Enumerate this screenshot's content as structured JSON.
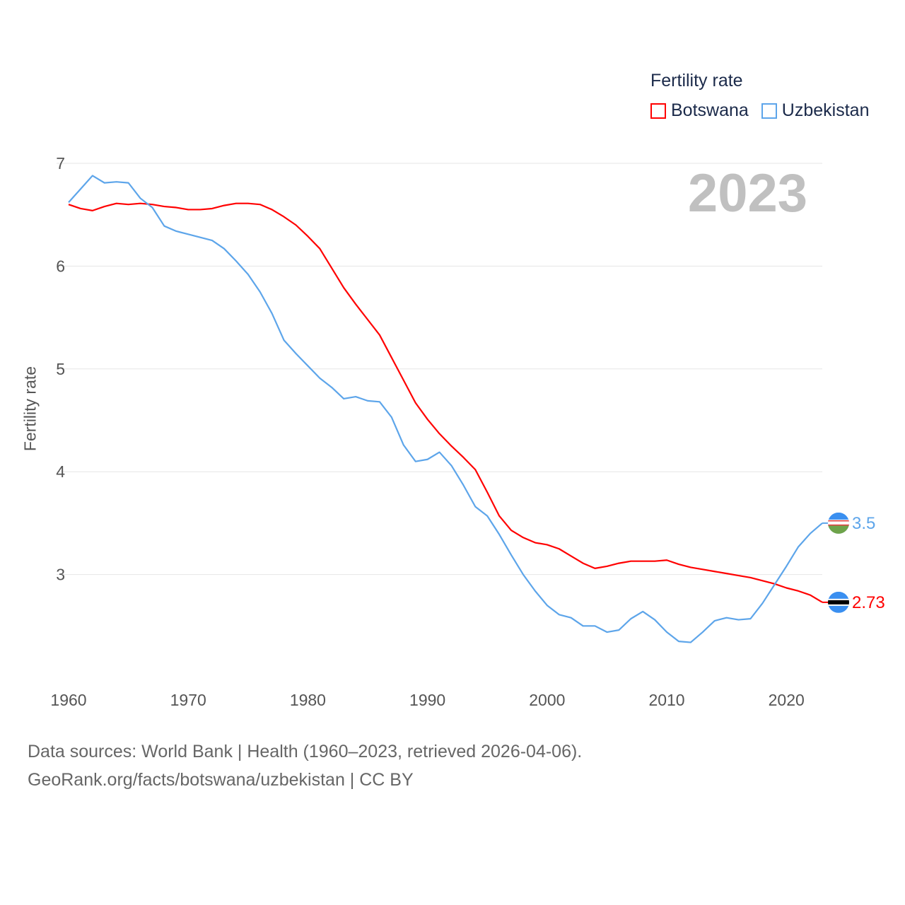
{
  "legend": {
    "title": "Fertility rate"
  },
  "year_label": "2023",
  "footer": {
    "line1": "Data sources: World Bank | Health (1960–2023, retrieved 2026-04-06).",
    "line2": "GeoRank.org/facts/botswana/uzbekistan | CC BY"
  },
  "chart_data": {
    "type": "line",
    "title": "Fertility rate",
    "xlabel": "",
    "ylabel": "Fertility rate",
    "xlim": [
      1960,
      2023
    ],
    "ylim": [
      2.0,
      7.0
    ],
    "xticks": [
      1960,
      1970,
      1980,
      1990,
      2000,
      2010,
      2020
    ],
    "yticks": [
      3,
      4,
      5,
      6,
      7
    ],
    "grid": true,
    "legend_position": "top-right",
    "x_start": 1960,
    "series": [
      {
        "name": "Botswana",
        "color": "#ff0000",
        "end_label": "2.73",
        "values": [
          6.6,
          6.56,
          6.54,
          6.58,
          6.61,
          6.6,
          6.61,
          6.6,
          6.58,
          6.57,
          6.55,
          6.55,
          6.56,
          6.59,
          6.61,
          6.61,
          6.6,
          6.55,
          6.48,
          6.4,
          6.29,
          6.17,
          5.98,
          5.79,
          5.63,
          5.48,
          5.33,
          5.11,
          4.89,
          4.67,
          4.51,
          4.37,
          4.25,
          4.14,
          4.02,
          3.8,
          3.57,
          3.43,
          3.36,
          3.31,
          3.29,
          3.25,
          3.18,
          3.11,
          3.06,
          3.08,
          3.11,
          3.13,
          3.13,
          3.13,
          3.14,
          3.1,
          3.07,
          3.05,
          3.03,
          3.01,
          2.99,
          2.97,
          2.94,
          2.91,
          2.87,
          2.84,
          2.8,
          2.73
        ]
      },
      {
        "name": "Uzbekistan",
        "color": "#5da5ea",
        "end_label": "3.5",
        "values": [
          6.62,
          6.75,
          6.88,
          6.81,
          6.82,
          6.81,
          6.66,
          6.57,
          6.39,
          6.34,
          6.31,
          6.28,
          6.25,
          6.17,
          6.05,
          5.92,
          5.75,
          5.54,
          5.28,
          5.15,
          5.03,
          4.91,
          4.82,
          4.71,
          4.73,
          4.69,
          4.68,
          4.53,
          4.26,
          4.1,
          4.12,
          4.19,
          4.06,
          3.87,
          3.66,
          3.57,
          3.39,
          3.19,
          3.0,
          2.84,
          2.7,
          2.61,
          2.58,
          2.5,
          2.5,
          2.44,
          2.46,
          2.57,
          2.64,
          2.56,
          2.44,
          2.35,
          2.34,
          2.44,
          2.55,
          2.58,
          2.56,
          2.57,
          2.72,
          2.9,
          3.08,
          3.27,
          3.4,
          3.5
        ]
      }
    ]
  }
}
